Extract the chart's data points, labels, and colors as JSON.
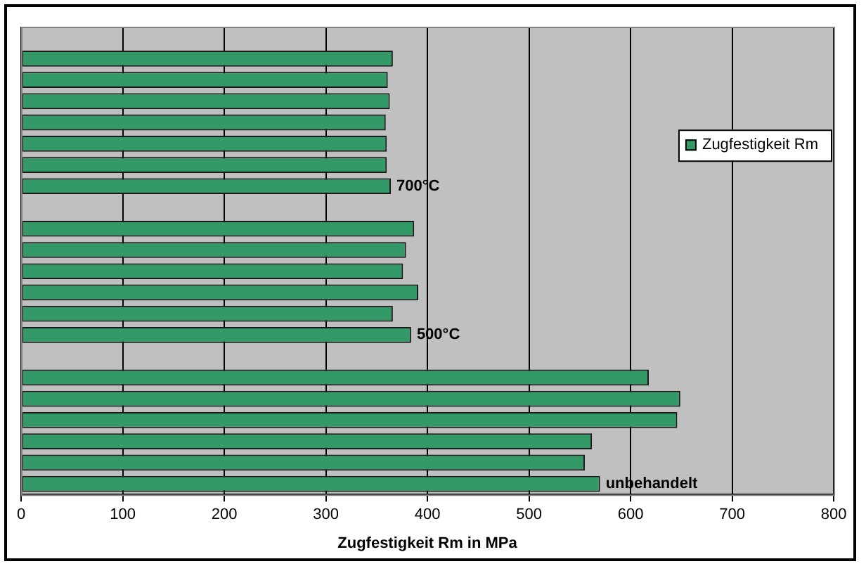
{
  "chart_data": {
    "type": "bar",
    "orientation": "horizontal",
    "xlabel": "Zugfestigkeit Rm in MPa",
    "categories": [
      null,
      null,
      null,
      null,
      null,
      null,
      null,
      "700°C",
      null,
      null,
      null,
      null,
      null,
      null,
      "500°C",
      null,
      null,
      null,
      null,
      null,
      null,
      "unbehandelt"
    ],
    "series": [
      {
        "name": "Zugfestigkeit Rm",
        "color": "#339966",
        "values": [
          null,
          366,
          361,
          363,
          359,
          360,
          360,
          364,
          null,
          387,
          379,
          376,
          391,
          366,
          384,
          null,
          618,
          649,
          646,
          562,
          555,
          570
        ]
      }
    ],
    "xlim": [
      0,
      800
    ],
    "xticks": [
      0,
      100,
      200,
      300,
      400,
      500,
      600,
      700,
      800
    ],
    "grid": "x",
    "legend": "right",
    "tick_labels": "x"
  }
}
